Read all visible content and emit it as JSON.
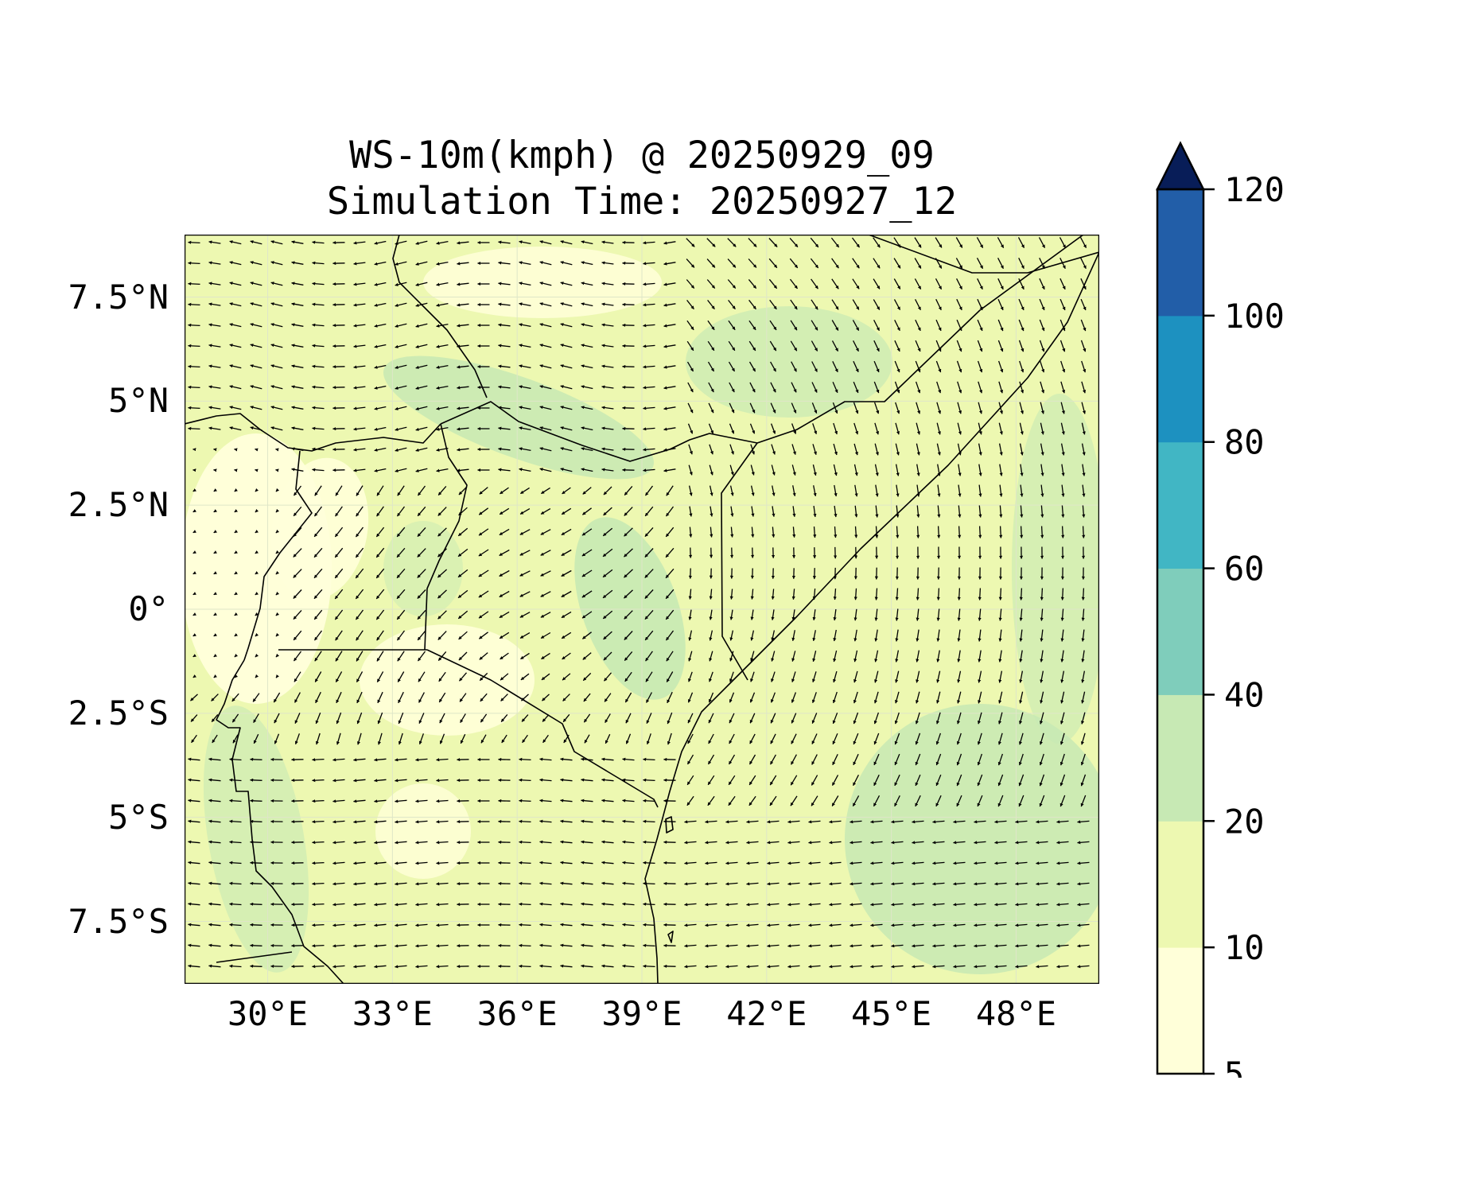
{
  "title": {
    "line1": "WS-10m(kmph) @ 20250929_09",
    "line2": "Simulation Time: 20250927_12"
  },
  "map": {
    "region": "East Africa",
    "lon_range": [
      28,
      50
    ],
    "lat_range": [
      -9,
      9
    ],
    "x_ticks": [
      "30°E",
      "33°E",
      "36°E",
      "39°E",
      "42°E",
      "45°E",
      "48°E"
    ],
    "y_ticks": [
      "7.5°N",
      "5°N",
      "2.5°N",
      "0°",
      "2.5°S",
      "5°S",
      "7.5°S"
    ],
    "wind_field": "10m wind vectors (kmph)"
  },
  "colorbar": {
    "levels": [
      "5",
      "10",
      "20",
      "40",
      "60",
      "80",
      "100",
      "120"
    ],
    "colors": [
      "#ffffd9",
      "#edf8b1",
      "#c7e9b4",
      "#7fcdbb",
      "#41b6c4",
      "#1d91c0",
      "#225ea8",
      "#0c2c84"
    ],
    "extend_color": "#081d58",
    "extend": "max"
  },
  "field_colors": {
    "lowest": "#ffffd9",
    "low": "#edf8b1",
    "moderate": "#c7e9b4"
  }
}
